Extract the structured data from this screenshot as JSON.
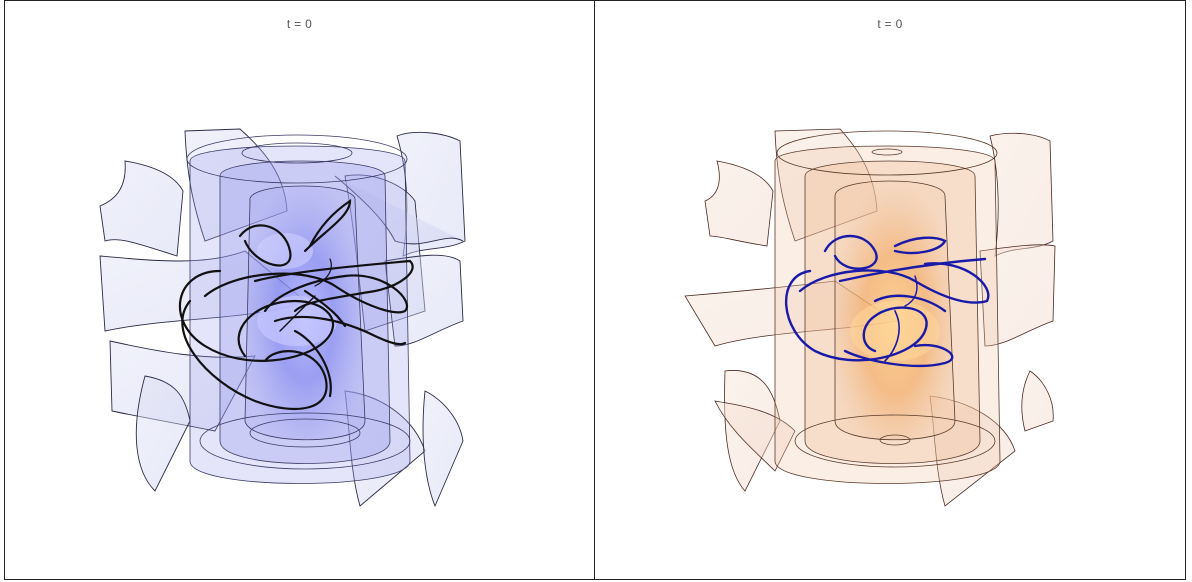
{
  "panels": [
    {
      "title": "t = 0",
      "surface_tint": "#7b7ff0",
      "sheet_fill": "#d8dcf2",
      "curve_color": "#111111"
    },
    {
      "title": "t = 0",
      "surface_tint": "#f2a55a",
      "sheet_fill": "#f4e2d4",
      "curve_color": "#1a1aa8"
    }
  ]
}
